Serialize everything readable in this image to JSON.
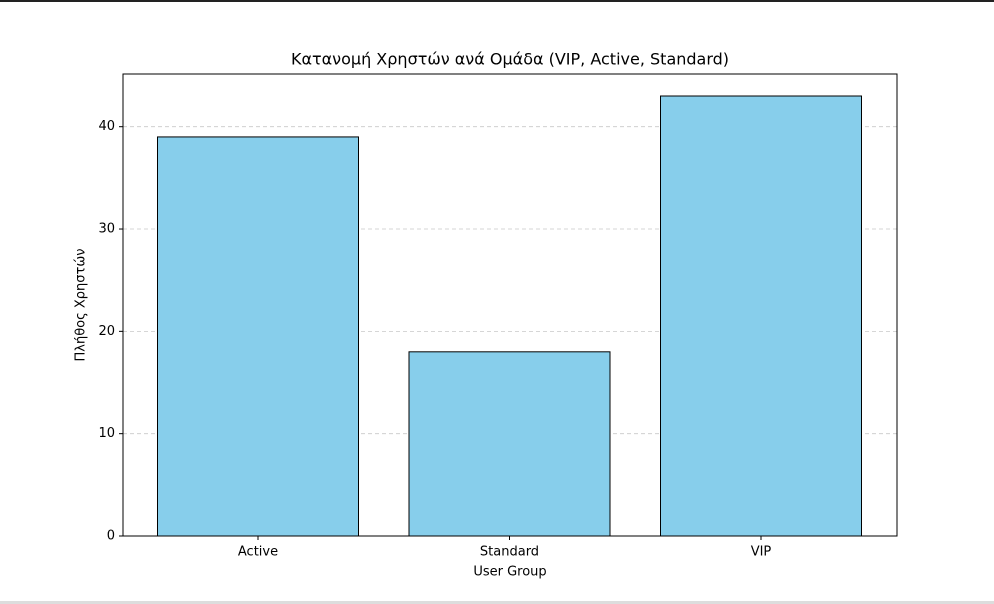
{
  "chart_data": {
    "type": "bar",
    "title": "Κατανομή Χρηστών ανά Ομάδα (VIP, Active, Standard)",
    "x_label": "User Group",
    "y_label": "Πλήθος Χρηστών",
    "categories": [
      "Active",
      "Standard",
      "VIP"
    ],
    "values": [
      39,
      18,
      43
    ],
    "color": "#87ceeb",
    "edge_color": "#000000",
    "ylim": [
      0,
      45.15
    ],
    "yticks": [
      0,
      10,
      20,
      30,
      40
    ],
    "grid": true
  }
}
